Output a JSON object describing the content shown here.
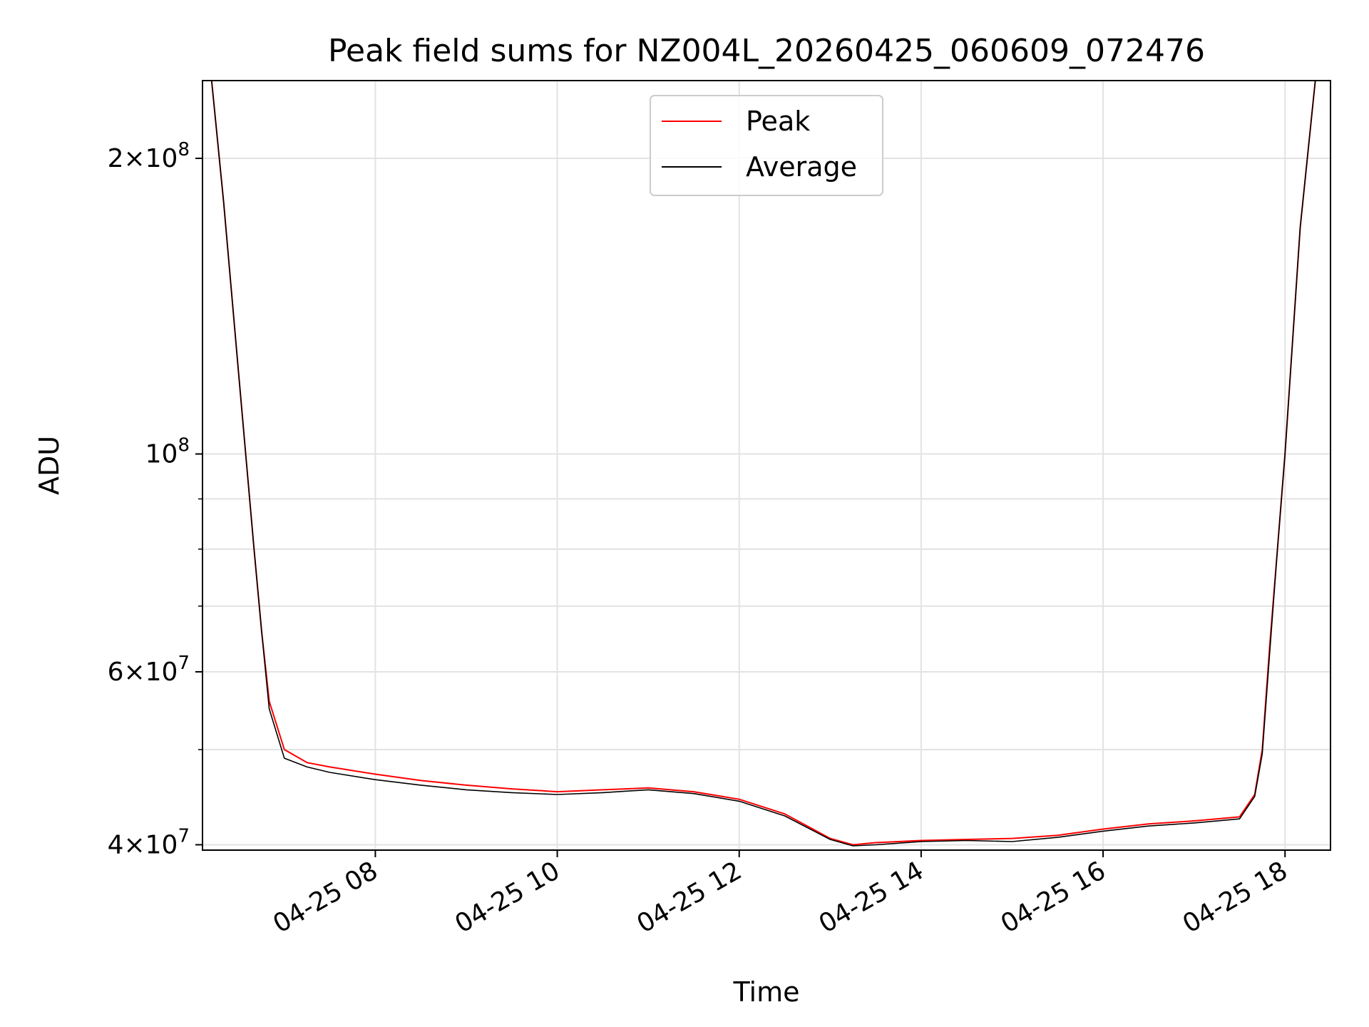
{
  "chart_data": {
    "type": "line",
    "title": "Peak field sums for NZ004L_20260425_060609_072476",
    "xlabel": "Time",
    "ylabel": "ADU",
    "y_scale": "log",
    "grid": true,
    "legend_position": "top-center",
    "xlim": [
      "2026-04-25 06:06",
      "2026-04-25 18:30"
    ],
    "ylim": [
      39500000,
      240000000
    ],
    "x_ticks": [
      {
        "value": "2026-04-25 08:00",
        "label": "04-25 08"
      },
      {
        "value": "2026-04-25 10:00",
        "label": "04-25 10"
      },
      {
        "value": "2026-04-25 12:00",
        "label": "04-25 12"
      },
      {
        "value": "2026-04-25 14:00",
        "label": "04-25 14"
      },
      {
        "value": "2026-04-25 16:00",
        "label": "04-25 16"
      },
      {
        "value": "2026-04-25 18:00",
        "label": "04-25 18"
      }
    ],
    "y_ticks": [
      {
        "value": 40000000,
        "base": "4",
        "exp": "7"
      },
      {
        "value": 60000000,
        "base": "6",
        "exp": "7"
      },
      {
        "value": 100000000,
        "base": "",
        "exp": "8"
      },
      {
        "value": 200000000,
        "base": "2",
        "exp": "8"
      }
    ],
    "y_minor_ticks": [
      50000000,
      70000000,
      80000000,
      90000000,
      300000000
    ],
    "series": [
      {
        "name": "Peak",
        "color": "#ff0000",
        "x": [
          "2026-04-25 06:06",
          "2026-04-25 06:12",
          "2026-04-25 06:20",
          "2026-04-25 06:30",
          "2026-04-25 06:40",
          "2026-04-25 06:45",
          "2026-04-25 06:50",
          "2026-04-25 07:00",
          "2026-04-25 07:15",
          "2026-04-25 07:30",
          "2026-04-25 08:00",
          "2026-04-25 08:30",
          "2026-04-25 09:00",
          "2026-04-25 09:30",
          "2026-04-25 10:00",
          "2026-04-25 10:30",
          "2026-04-25 11:00",
          "2026-04-25 11:30",
          "2026-04-25 12:00",
          "2026-04-25 12:30",
          "2026-04-25 13:00",
          "2026-04-25 13:15",
          "2026-04-25 13:30",
          "2026-04-25 14:00",
          "2026-04-25 14:30",
          "2026-04-25 15:00",
          "2026-04-25 15:30",
          "2026-04-25 16:00",
          "2026-04-25 16:30",
          "2026-04-25 17:00",
          "2026-04-25 17:30",
          "2026-04-25 17:40",
          "2026-04-25 17:45",
          "2026-04-25 17:50",
          "2026-04-25 17:55",
          "2026-04-25 18:00",
          "2026-04-25 18:10",
          "2026-04-25 18:20",
          "2026-04-25 18:30"
        ],
        "values": [
          240000000,
          240000000,
          180000000,
          120000000,
          80000000,
          66000000,
          56000000,
          50000000,
          48500000,
          48000000,
          47200000,
          46500000,
          46000000,
          45600000,
          45300000,
          45500000,
          45700000,
          45300000,
          44500000,
          43000000,
          40600000,
          40000000,
          40200000,
          40400000,
          40500000,
          40600000,
          40900000,
          41500000,
          42000000,
          42300000,
          42700000,
          45000000,
          50000000,
          64000000,
          80000000,
          100000000,
          170000000,
          240000000,
          240000000
        ]
      },
      {
        "name": "Average",
        "color": "#000000",
        "x": [
          "2026-04-25 06:06",
          "2026-04-25 06:12",
          "2026-04-25 06:20",
          "2026-04-25 06:30",
          "2026-04-25 06:40",
          "2026-04-25 06:45",
          "2026-04-25 06:50",
          "2026-04-25 07:00",
          "2026-04-25 07:15",
          "2026-04-25 07:30",
          "2026-04-25 08:00",
          "2026-04-25 08:30",
          "2026-04-25 09:00",
          "2026-04-25 09:30",
          "2026-04-25 10:00",
          "2026-04-25 10:30",
          "2026-04-25 11:00",
          "2026-04-25 11:30",
          "2026-04-25 12:00",
          "2026-04-25 12:30",
          "2026-04-25 13:00",
          "2026-04-25 13:15",
          "2026-04-25 13:30",
          "2026-04-25 14:00",
          "2026-04-25 14:30",
          "2026-04-25 15:00",
          "2026-04-25 15:30",
          "2026-04-25 16:00",
          "2026-04-25 16:30",
          "2026-04-25 17:00",
          "2026-04-25 17:30",
          "2026-04-25 17:40",
          "2026-04-25 17:45",
          "2026-04-25 17:50",
          "2026-04-25 17:55",
          "2026-04-25 18:00",
          "2026-04-25 18:10",
          "2026-04-25 18:20",
          "2026-04-25 18:30"
        ],
        "values": [
          240000000,
          240000000,
          180000000,
          120000000,
          80000000,
          66000000,
          55000000,
          49000000,
          48000000,
          47400000,
          46600000,
          46000000,
          45500000,
          45200000,
          45000000,
          45200000,
          45500000,
          45100000,
          44300000,
          42800000,
          40500000,
          39900000,
          40000000,
          40300000,
          40400000,
          40300000,
          40700000,
          41300000,
          41800000,
          42100000,
          42500000,
          44800000,
          49500000,
          63000000,
          80000000,
          100000000,
          170000000,
          240000000,
          240000000
        ]
      }
    ]
  }
}
